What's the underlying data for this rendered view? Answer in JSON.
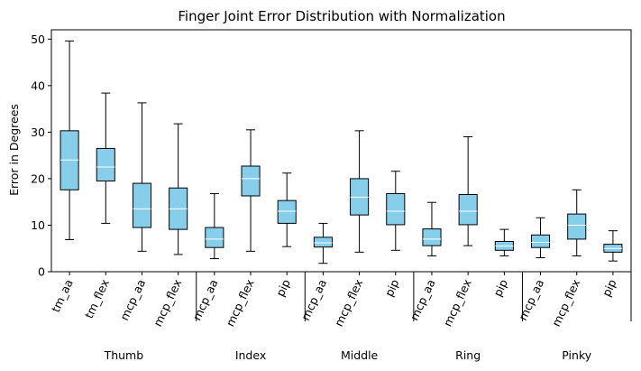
{
  "chart_data": {
    "type": "boxplot",
    "title": "Finger Joint Error Distribution with Normalization",
    "xlabel": "",
    "ylabel": "Error in Degrees",
    "ylim": [
      0,
      52
    ],
    "yticks": [
      0,
      10,
      20,
      30,
      40,
      50
    ],
    "grid": false,
    "legend": "none",
    "colors": {
      "box_fill": "#87ceeb",
      "box_edge": "#000000",
      "median": "#ffffff",
      "whisker": "#000000"
    },
    "categories": [
      "tm_aa",
      "tm_flex",
      "mcp_aa",
      "mcp_flex",
      "mcp_aa",
      "mcp_flex",
      "pip",
      "mcp_aa",
      "mcp_flex",
      "pip",
      "mcp_aa",
      "mcp_flex",
      "pip",
      "mcp_aa",
      "mcp_flex",
      "pip"
    ],
    "groups": [
      {
        "label": "Thumb",
        "start": 0,
        "end": 3
      },
      {
        "label": "Index",
        "start": 4,
        "end": 6
      },
      {
        "label": "Middle",
        "start": 7,
        "end": 9
      },
      {
        "label": "Ring",
        "start": 10,
        "end": 12
      },
      {
        "label": "Pinky",
        "start": 13,
        "end": 15
      }
    ],
    "boxes": [
      {
        "whislo": 6.9,
        "q1": 17.6,
        "med": 24.0,
        "q3": 30.3,
        "whishi": 49.6
      },
      {
        "whislo": 10.4,
        "q1": 19.5,
        "med": 22.5,
        "q3": 26.5,
        "whishi": 38.4
      },
      {
        "whislo": 4.4,
        "q1": 9.5,
        "med": 13.5,
        "q3": 19.0,
        "whishi": 36.3
      },
      {
        "whislo": 3.7,
        "q1": 9.1,
        "med": 13.5,
        "q3": 18.0,
        "whishi": 31.8
      },
      {
        "whislo": 2.8,
        "q1": 5.2,
        "med": 7.0,
        "q3": 9.5,
        "whishi": 16.8
      },
      {
        "whislo": 4.4,
        "q1": 16.3,
        "med": 20.0,
        "q3": 22.7,
        "whishi": 30.5
      },
      {
        "whislo": 5.4,
        "q1": 10.4,
        "med": 13.0,
        "q3": 15.3,
        "whishi": 21.2
      },
      {
        "whislo": 1.8,
        "q1": 5.3,
        "med": 6.2,
        "q3": 7.4,
        "whishi": 10.4
      },
      {
        "whislo": 4.2,
        "q1": 12.2,
        "med": 16.0,
        "q3": 20.0,
        "whishi": 30.3
      },
      {
        "whislo": 4.6,
        "q1": 10.1,
        "med": 13.0,
        "q3": 16.8,
        "whishi": 21.6
      },
      {
        "whislo": 3.4,
        "q1": 5.6,
        "med": 7.0,
        "q3": 9.2,
        "whishi": 14.9
      },
      {
        "whislo": 5.6,
        "q1": 10.1,
        "med": 13.0,
        "q3": 16.6,
        "whishi": 29.0
      },
      {
        "whislo": 3.4,
        "q1": 4.6,
        "med": 5.5,
        "q3": 6.5,
        "whishi": 9.1
      },
      {
        "whislo": 3.0,
        "q1": 5.2,
        "med": 6.3,
        "q3": 7.9,
        "whishi": 11.6
      },
      {
        "whislo": 3.4,
        "q1": 7.0,
        "med": 10.0,
        "q3": 12.4,
        "whishi": 17.6
      },
      {
        "whislo": 2.3,
        "q1": 4.2,
        "med": 5.0,
        "q3": 5.9,
        "whishi": 8.8
      }
    ]
  }
}
